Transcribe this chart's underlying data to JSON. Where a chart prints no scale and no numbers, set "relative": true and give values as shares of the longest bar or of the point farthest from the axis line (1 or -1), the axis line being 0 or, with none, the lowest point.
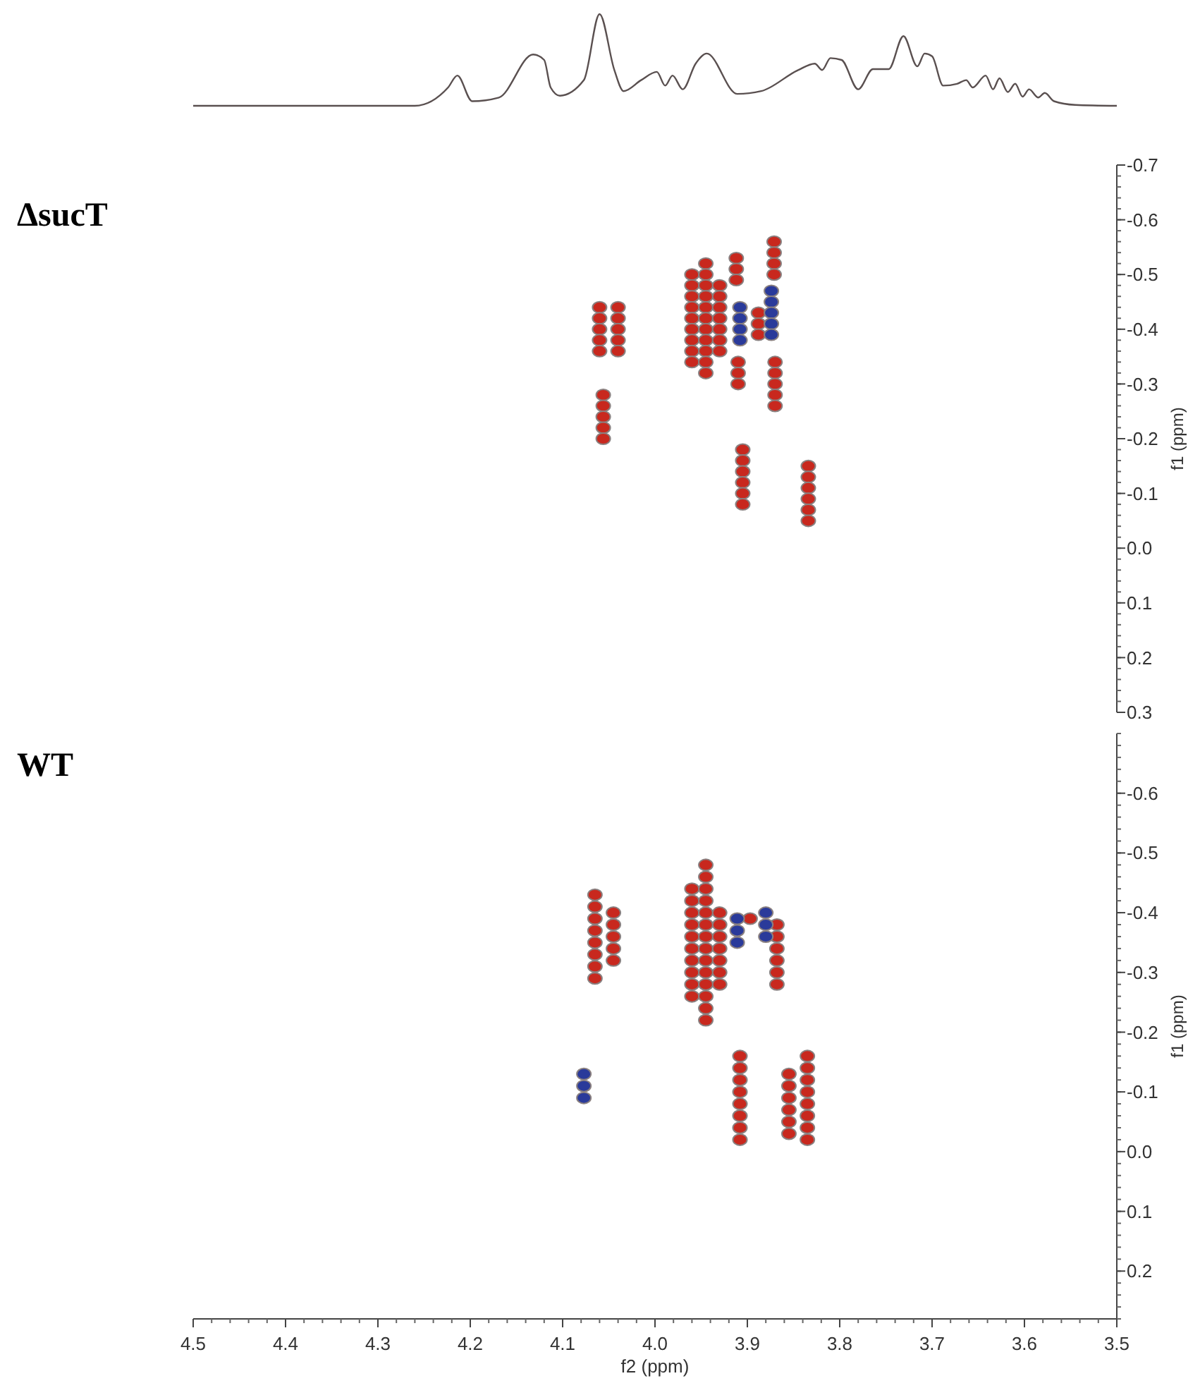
{
  "chart_data": [
    {
      "type": "line",
      "relative": true,
      "xlim": [
        4.5,
        3.5
      ],
      "series": [
        {
          "color": "#5a5050",
          "x": [
            4.5,
            4.26,
            4.224,
            4.214,
            4.198,
            4.169,
            4.132,
            4.12,
            4.113,
            4.103,
            4.077,
            4.06,
            4.044,
            4.034,
            4.015,
            3.998,
            3.989,
            3.981,
            3.97,
            3.956,
            3.944,
            3.911,
            3.885,
            3.845,
            3.827,
            3.819,
            3.81,
            3.798,
            3.78,
            3.764,
            3.747,
            3.731,
            3.716,
            3.708,
            3.7,
            3.688,
            3.673,
            3.663,
            3.656,
            3.642,
            3.634,
            3.627,
            3.618,
            3.61,
            3.602,
            3.595,
            3.585,
            3.578,
            3.568,
            3.545,
            3.5
          ],
          "values": [
            0,
            0,
            0.2,
            0.33,
            0.05,
            0.09,
            0.56,
            0.5,
            0.2,
            0.11,
            0.28,
            1,
            0.39,
            0.16,
            0.28,
            0.37,
            0.22,
            0.33,
            0.18,
            0.46,
            0.57,
            0.13,
            0.16,
            0.39,
            0.46,
            0.39,
            0.52,
            0.5,
            0.18,
            0.4,
            0.4,
            0.76,
            0.43,
            0.57,
            0.54,
            0.22,
            0.24,
            0.28,
            0.2,
            0.33,
            0.18,
            0.3,
            0.15,
            0.24,
            0.1,
            0.18,
            0.09,
            0.14,
            0.05,
            0.01,
            0
          ]
        }
      ]
    },
    {
      "type": "scatter",
      "title": "ΔsucT",
      "ylabel": "f1 (ppm)",
      "xlim": [
        4.5,
        3.5
      ],
      "ylim": [
        0.3,
        -0.7
      ],
      "yticks": [
        -0.7,
        -0.6,
        -0.5,
        -0.4,
        -0.3,
        -0.2,
        -0.1,
        {
          "value": 0,
          "label": "0.0"
        },
        0.1,
        0.2,
        0.3
      ],
      "tick_labels": "y",
      "marker": "circle",
      "series": [
        {
          "color": "#c8281e",
          "x": [
            4.06,
            4.06,
            4.06,
            4.06,
            4.06,
            4.04,
            4.04,
            4.04,
            4.04,
            4.04,
            3.96,
            3.96,
            3.96,
            3.96,
            3.96,
            3.96,
            3.96,
            3.96,
            3.96,
            3.945,
            3.945,
            3.945,
            3.945,
            3.945,
            3.945,
            3.945,
            3.945,
            3.945,
            3.945,
            3.945,
            3.93,
            3.93,
            3.93,
            3.93,
            3.93,
            3.93,
            3.93,
            3.912,
            3.912,
            3.912,
            3.91,
            3.91,
            3.91,
            3.888,
            3.888,
            3.888,
            3.871,
            3.871,
            3.871,
            3.871,
            3.87,
            3.87,
            3.87,
            3.87,
            3.87,
            4.056,
            4.056,
            4.056,
            4.056,
            4.056,
            3.905,
            3.905,
            3.905,
            3.905,
            3.905,
            3.905,
            3.834,
            3.834,
            3.834,
            3.834,
            3.834,
            3.834
          ],
          "values": [
            -0.44,
            -0.42,
            -0.4,
            -0.38,
            -0.36,
            -0.44,
            -0.42,
            -0.4,
            -0.38,
            -0.36,
            -0.5,
            -0.48,
            -0.46,
            -0.44,
            -0.42,
            -0.4,
            -0.38,
            -0.36,
            -0.34,
            -0.52,
            -0.5,
            -0.48,
            -0.46,
            -0.44,
            -0.42,
            -0.4,
            -0.38,
            -0.36,
            -0.34,
            -0.32,
            -0.48,
            -0.46,
            -0.44,
            -0.42,
            -0.4,
            -0.38,
            -0.36,
            -0.53,
            -0.51,
            -0.49,
            -0.34,
            -0.32,
            -0.3,
            -0.43,
            -0.41,
            -0.39,
            -0.56,
            -0.54,
            -0.52,
            -0.5,
            -0.34,
            -0.32,
            -0.3,
            -0.28,
            -0.26,
            -0.28,
            -0.26,
            -0.24,
            -0.22,
            -0.2,
            -0.18,
            -0.16,
            -0.14,
            -0.12,
            -0.1,
            -0.08,
            -0.15,
            -0.13,
            -0.11,
            -0.09,
            -0.07,
            -0.05
          ]
        },
        {
          "color": "#2a3a9a",
          "x": [
            3.908,
            3.908,
            3.908,
            3.908,
            3.874,
            3.874,
            3.874,
            3.874,
            3.874
          ],
          "values": [
            -0.44,
            -0.42,
            -0.4,
            -0.38,
            -0.47,
            -0.45,
            -0.43,
            -0.41,
            -0.39
          ]
        }
      ]
    },
    {
      "type": "scatter",
      "title": "WT",
      "xlabel": "f2 (ppm)",
      "ylabel": "f1 (ppm)",
      "xlim": [
        4.5,
        3.5
      ],
      "xticks": [
        4.5,
        4.4,
        4.3,
        4.2,
        4.1,
        {
          "value": 4,
          "label": "4.0"
        },
        3.9,
        3.8,
        3.7,
        3.6,
        3.5
      ],
      "ylim": [
        0.28,
        -0.7
      ],
      "yticks": [
        -0.6,
        -0.5,
        -0.4,
        -0.3,
        -0.2,
        -0.1,
        {
          "value": 0,
          "label": "0.0"
        },
        0.1,
        0.2
      ],
      "marker": "circle",
      "series": [
        {
          "color": "#c8281e",
          "x": [
            4.065,
            4.065,
            4.065,
            4.065,
            4.065,
            4.065,
            4.065,
            4.065,
            4.045,
            4.045,
            4.045,
            4.045,
            4.045,
            3.96,
            3.96,
            3.96,
            3.96,
            3.96,
            3.96,
            3.96,
            3.96,
            3.96,
            3.96,
            3.945,
            3.945,
            3.945,
            3.945,
            3.945,
            3.945,
            3.945,
            3.945,
            3.945,
            3.945,
            3.945,
            3.945,
            3.945,
            3.945,
            3.93,
            3.93,
            3.93,
            3.93,
            3.93,
            3.93,
            3.93,
            3.897,
            3.868,
            3.868,
            3.868,
            3.868,
            3.868,
            3.868,
            3.908,
            3.908,
            3.908,
            3.908,
            3.908,
            3.908,
            3.908,
            3.908,
            3.855,
            3.855,
            3.855,
            3.855,
            3.855,
            3.855,
            3.835,
            3.835,
            3.835,
            3.835,
            3.835,
            3.835,
            3.835,
            3.835
          ],
          "values": [
            -0.43,
            -0.41,
            -0.39,
            -0.37,
            -0.35,
            -0.33,
            -0.31,
            -0.29,
            -0.4,
            -0.38,
            -0.36,
            -0.34,
            -0.32,
            -0.44,
            -0.42,
            -0.4,
            -0.38,
            -0.36,
            -0.34,
            -0.32,
            -0.3,
            -0.28,
            -0.26,
            -0.48,
            -0.46,
            -0.44,
            -0.42,
            -0.4,
            -0.38,
            -0.36,
            -0.34,
            -0.32,
            -0.3,
            -0.28,
            -0.26,
            -0.24,
            -0.22,
            -0.4,
            -0.38,
            -0.36,
            -0.34,
            -0.32,
            -0.3,
            -0.28,
            -0.39,
            -0.38,
            -0.36,
            -0.34,
            -0.32,
            -0.3,
            -0.28,
            -0.16,
            -0.14,
            -0.12,
            -0.1,
            -0.08,
            -0.06,
            -0.04,
            -0.02,
            -0.13,
            -0.11,
            -0.09,
            -0.07,
            -0.05,
            -0.03,
            -0.16,
            -0.14,
            -0.12,
            -0.1,
            -0.08,
            -0.06,
            -0.04,
            -0.02
          ]
        },
        {
          "color": "#2a3a9a",
          "x": [
            3.911,
            3.911,
            3.911,
            3.88,
            3.88,
            3.88,
            4.077,
            4.077,
            4.077
          ],
          "values": [
            -0.39,
            -0.37,
            -0.35,
            -0.4,
            -0.38,
            -0.36,
            -0.13,
            -0.11,
            -0.09
          ]
        }
      ]
    }
  ]
}
